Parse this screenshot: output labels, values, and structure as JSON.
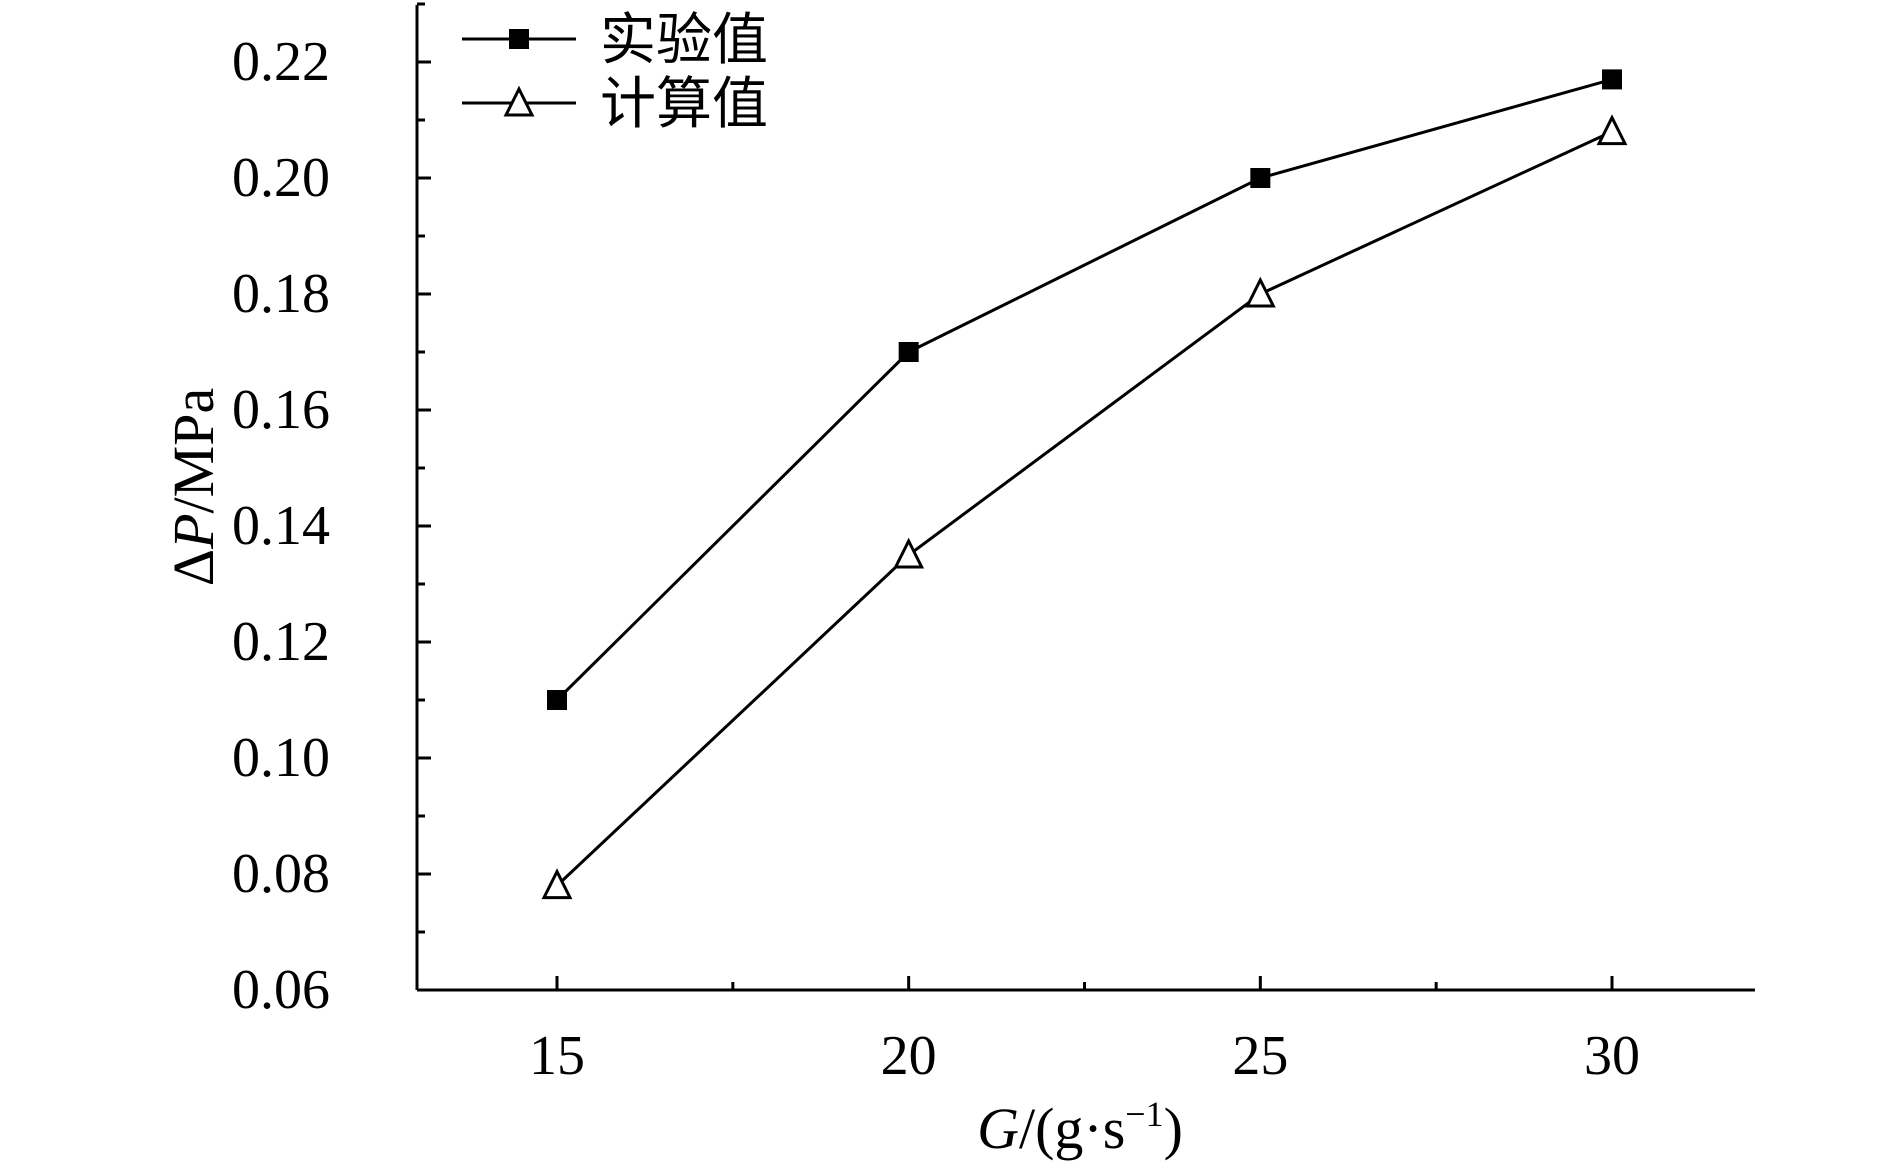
{
  "chart_data": {
    "type": "line",
    "x": [
      15,
      20,
      25,
      30
    ],
    "series": [
      {
        "name": "实验值",
        "marker": "filled-square",
        "values": [
          0.11,
          0.17,
          0.2,
          0.217
        ]
      },
      {
        "name": "计算值",
        "marker": "open-triangle",
        "values": [
          0.078,
          0.135,
          0.18,
          0.208
        ]
      }
    ],
    "xlim": [
      13,
      32
    ],
    "ylim": [
      0.06,
      0.23
    ],
    "x_ticks": [
      "15",
      "20",
      "25",
      "30"
    ],
    "y_ticks": [
      "0.06",
      "0.08",
      "0.10",
      "0.12",
      "0.14",
      "0.16",
      "0.18",
      "0.20",
      "0.22"
    ],
    "xlabel": {
      "var": "G",
      "rest_prefix": "/(g·s",
      "superscript": "−1",
      "rest_suffix": ")"
    },
    "ylabel": {
      "delta": "Δ",
      "var": "P",
      "rest": "/MPa"
    },
    "title": "",
    "grid": false,
    "legend_position": "top-left",
    "colors": {
      "line": "#000000",
      "background": "#ffffff"
    }
  }
}
